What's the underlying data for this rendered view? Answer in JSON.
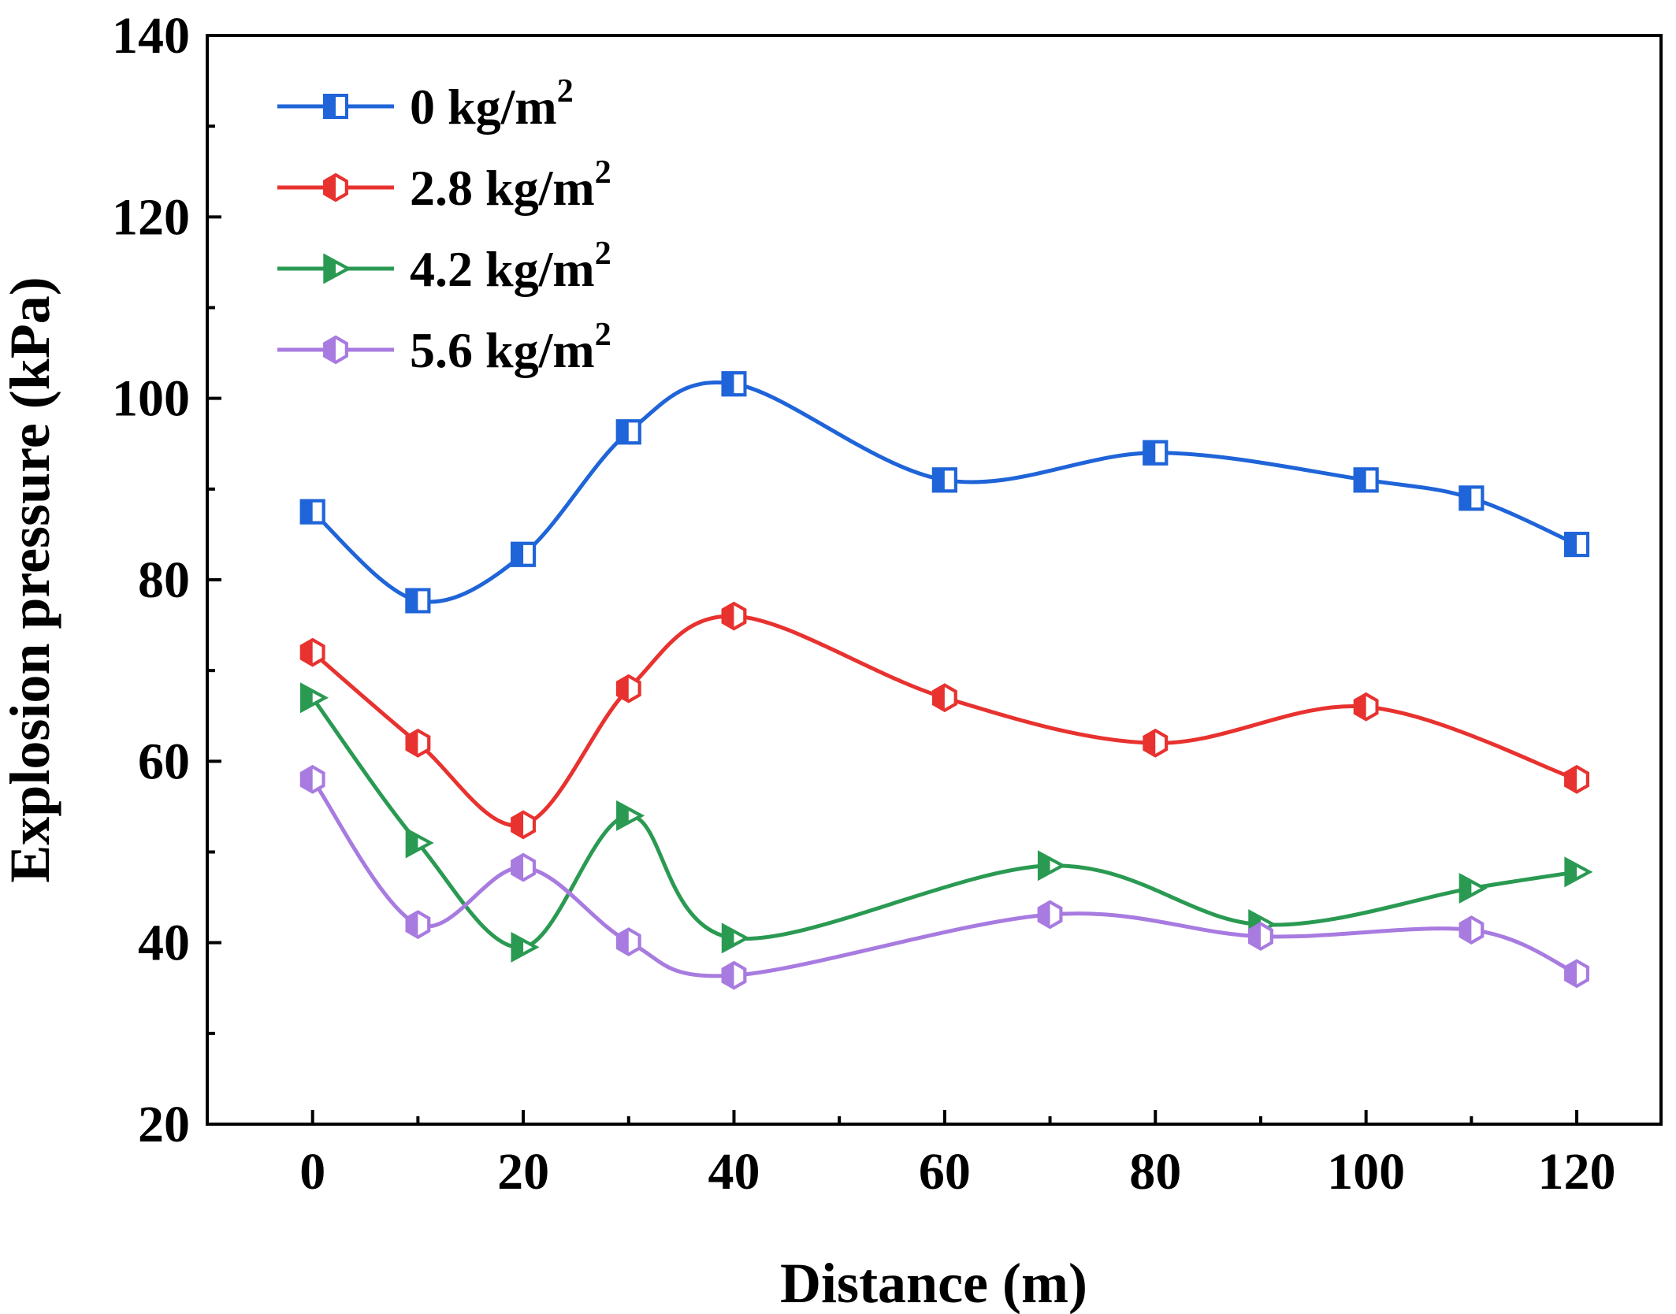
{
  "chart_data": {
    "type": "line",
    "title": "",
    "xlabel": "Distance (m)",
    "ylabel": "Explosion pressure (kPa)",
    "xlim": [
      -10,
      128
    ],
    "ylim": [
      20,
      140
    ],
    "xticks": [
      0,
      20,
      40,
      60,
      80,
      100,
      120
    ],
    "xtick_labels": [
      "0",
      "20",
      "40",
      "60",
      "80",
      "100",
      "120"
    ],
    "yticks": [
      20,
      40,
      60,
      80,
      100,
      120,
      140
    ],
    "ytick_labels": [
      "20",
      "40",
      "60",
      "80",
      "100",
      "120",
      "140"
    ],
    "grid": false,
    "legend_position": "top-left",
    "series": [
      {
        "name": "0 kg/m",
        "sup": "2",
        "color": "#1f64d8",
        "marker": "square-half",
        "x": [
          0,
          10,
          20,
          30,
          40,
          60,
          80,
          100,
          110,
          120
        ],
        "y": [
          87.5,
          77.7,
          82.8,
          96.3,
          101.6,
          91,
          94,
          91,
          89,
          83.9
        ]
      },
      {
        "name": "2.8 kg/m",
        "sup": "2",
        "color": "#e8322f",
        "marker": "hexagon-half",
        "x": [
          0,
          10,
          20,
          30,
          40,
          60,
          80,
          100,
          120
        ],
        "y": [
          72,
          62,
          53,
          68,
          76,
          67,
          62,
          66,
          58
        ]
      },
      {
        "name": "4.2 kg/m",
        "sup": "2",
        "color": "#2a9a52",
        "marker": "triangle-right-half",
        "x": [
          0,
          10,
          20,
          30,
          40,
          70,
          90,
          110,
          120
        ],
        "y": [
          67,
          51,
          39.5,
          54,
          40.5,
          48.5,
          42,
          46,
          47.8
        ]
      },
      {
        "name": "5.6 kg/m",
        "sup": "2",
        "color": "#a87be0",
        "marker": "hexagon-half",
        "x": [
          0,
          10,
          20,
          30,
          40,
          70,
          90,
          110,
          120
        ],
        "y": [
          58,
          42,
          48.3,
          40.1,
          36.4,
          43.1,
          40.7,
          41.4,
          36.6
        ]
      }
    ]
  }
}
